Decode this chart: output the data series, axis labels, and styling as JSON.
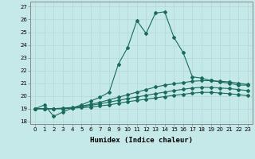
{
  "title": "",
  "xlabel": "Humidex (Indice chaleur)",
  "bg_color": "#c5e8e8",
  "line_color": "#1a6b5a",
  "grid_color": "#b0d8d8",
  "ylim": [
    17.8,
    27.4
  ],
  "xlim": [
    -0.5,
    23.5
  ],
  "yticks": [
    18,
    19,
    20,
    21,
    22,
    23,
    24,
    25,
    26,
    27
  ],
  "xticks": [
    0,
    1,
    2,
    3,
    4,
    5,
    6,
    7,
    8,
    9,
    10,
    11,
    12,
    13,
    14,
    15,
    16,
    17,
    18,
    19,
    20,
    21,
    22,
    23
  ],
  "xtick_labels": [
    "0",
    "1",
    "2",
    "3",
    "4",
    "5",
    "6",
    "7",
    "8",
    "9",
    "10",
    "11",
    "12",
    "13",
    "14",
    "15",
    "16",
    "17",
    "18",
    "19",
    "20",
    "21",
    "22",
    "23"
  ],
  "line1_x": [
    0,
    1,
    2,
    3,
    4,
    5,
    6,
    7,
    8,
    9,
    10,
    11,
    12,
    13,
    14,
    15,
    16,
    17,
    18,
    19,
    20,
    21,
    22,
    23
  ],
  "line1_y": [
    19.0,
    19.3,
    18.4,
    18.75,
    19.05,
    19.3,
    19.6,
    19.9,
    20.3,
    22.5,
    23.8,
    25.9,
    24.9,
    26.5,
    26.6,
    24.6,
    23.4,
    21.5,
    21.4,
    21.2,
    21.1,
    21.0,
    20.85,
    20.85
  ],
  "line2_x": [
    0,
    1,
    2,
    3,
    4,
    5,
    6,
    7,
    8,
    9,
    10,
    11,
    12,
    13,
    14,
    15,
    16,
    17,
    18,
    19,
    20,
    21,
    22,
    23
  ],
  "line2_y": [
    19.0,
    19.0,
    19.0,
    19.05,
    19.1,
    19.2,
    19.35,
    19.5,
    19.7,
    19.9,
    20.1,
    20.3,
    20.5,
    20.7,
    20.85,
    20.95,
    21.05,
    21.15,
    21.2,
    21.2,
    21.15,
    21.1,
    21.0,
    20.9
  ],
  "line3_x": [
    0,
    1,
    2,
    3,
    4,
    5,
    6,
    7,
    8,
    9,
    10,
    11,
    12,
    13,
    14,
    15,
    16,
    17,
    18,
    19,
    20,
    21,
    22,
    23
  ],
  "line3_y": [
    19.0,
    19.0,
    19.0,
    19.0,
    19.07,
    19.15,
    19.27,
    19.38,
    19.52,
    19.65,
    19.8,
    19.92,
    20.05,
    20.18,
    20.3,
    20.42,
    20.52,
    20.62,
    20.68,
    20.68,
    20.62,
    20.58,
    20.5,
    20.42
  ],
  "line4_x": [
    0,
    1,
    2,
    3,
    4,
    5,
    6,
    7,
    8,
    9,
    10,
    11,
    12,
    13,
    14,
    15,
    16,
    17,
    18,
    19,
    20,
    21,
    22,
    23
  ],
  "line4_y": [
    19.0,
    19.0,
    19.0,
    19.0,
    19.04,
    19.08,
    19.13,
    19.22,
    19.3,
    19.43,
    19.55,
    19.65,
    19.75,
    19.85,
    19.95,
    20.05,
    20.13,
    20.22,
    20.28,
    20.28,
    20.23,
    20.18,
    20.1,
    20.02
  ],
  "marker": "D",
  "markersize": 2.0,
  "linewidth": 0.8,
  "font_size": 6.5
}
